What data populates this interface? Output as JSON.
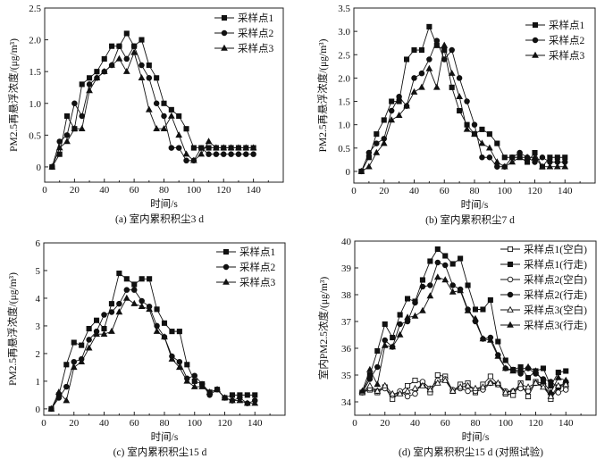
{
  "chart_data": [
    {
      "type": "line",
      "panel_id": "a",
      "caption": "(a)  室内累积积尘3 d",
      "xlabel": "时间/s",
      "ylabel": "PM2.5再悬浮浓度/(μg/m³)",
      "xlim": [
        0,
        160
      ],
      "ylim": [
        -0.24,
        2.5
      ],
      "xticks": [
        0,
        20,
        40,
        60,
        80,
        100,
        120,
        140
      ],
      "yticks": [
        0,
        0.5,
        1.0,
        1.5,
        2.0,
        2.5
      ],
      "ytick_labels": [
        "0",
        "0.5",
        "1.0",
        "1.5",
        "2.0",
        "2.5"
      ],
      "legend_position": "top-right",
      "x": [
        5,
        10,
        15,
        20,
        25,
        30,
        35,
        40,
        45,
        50,
        55,
        60,
        65,
        70,
        75,
        80,
        85,
        90,
        95,
        100,
        105,
        110,
        115,
        120,
        125,
        130,
        135,
        140
      ],
      "series": [
        {
          "name": "采样点1",
          "marker": "square",
          "filled": true,
          "values": [
            0,
            0.2,
            0.8,
            0.6,
            1.3,
            1.4,
            1.5,
            1.7,
            1.9,
            1.9,
            2.1,
            1.9,
            2.0,
            1.6,
            1.4,
            1.0,
            0.9,
            0.8,
            0.6,
            0.3,
            0.3,
            0.3,
            0.3,
            0.3,
            0.3,
            0.3,
            0.3,
            0.3
          ]
        },
        {
          "name": "采样点2",
          "marker": "circle",
          "filled": true,
          "values": [
            0,
            0.4,
            0.5,
            1.0,
            0.8,
            1.3,
            1.4,
            1.5,
            1.6,
            1.9,
            1.7,
            1.9,
            1.6,
            1.4,
            1.0,
            0.8,
            0.3,
            0.3,
            0.1,
            0.1,
            0.3,
            0.2,
            0.2,
            0.2,
            0.2,
            0.2,
            0.2,
            0.2
          ]
        },
        {
          "name": "采样点3",
          "marker": "triangle",
          "filled": true,
          "values": [
            0,
            0.3,
            0.4,
            0.6,
            0.6,
            1.2,
            1.4,
            1.5,
            1.6,
            1.7,
            1.5,
            1.8,
            1.4,
            0.9,
            0.6,
            0.6,
            0.8,
            0.5,
            0.2,
            0.1,
            0.2,
            0.4,
            0.3,
            0.3,
            0.3,
            0.3,
            0.3,
            0.3
          ]
        }
      ]
    },
    {
      "type": "line",
      "panel_id": "b",
      "caption": "(b)  室内累积积尘7 d",
      "xlabel": "时间/s",
      "ylabel": "PM2.5再悬浮浓度/(μg/m³)",
      "xlim": [
        0,
        160
      ],
      "ylim": [
        -0.25,
        3.5
      ],
      "xticks": [
        0,
        20,
        40,
        60,
        80,
        100,
        120,
        140
      ],
      "yticks": [
        0,
        0.5,
        1.0,
        1.5,
        2.0,
        2.5,
        3.0,
        3.5
      ],
      "ytick_labels": [
        "0",
        "0.5",
        "1.0",
        "1.5",
        "2.0",
        "2.5",
        "3.0",
        "3.5"
      ],
      "legend_position": "top-right",
      "x": [
        5,
        10,
        15,
        20,
        25,
        30,
        35,
        40,
        45,
        50,
        55,
        60,
        65,
        70,
        75,
        80,
        85,
        90,
        95,
        100,
        105,
        110,
        115,
        120,
        125,
        130,
        135,
        140
      ],
      "series": [
        {
          "name": "采样点1",
          "marker": "square",
          "filled": true,
          "values": [
            0,
            0.3,
            0.8,
            1.1,
            1.5,
            1.5,
            2.4,
            2.6,
            2.6,
            3.1,
            2.7,
            2.6,
            1.8,
            1.3,
            1.0,
            0.8,
            0.9,
            0.8,
            0.6,
            0.3,
            0.3,
            0.3,
            0.2,
            0.4,
            0.1,
            0.3,
            0.3,
            0.3
          ]
        },
        {
          "name": "采样点2",
          "marker": "circle",
          "filled": true,
          "values": [
            0,
            0.4,
            0.6,
            0.7,
            1.3,
            1.6,
            1.4,
            2.0,
            2.1,
            2.4,
            2.8,
            2.4,
            2.6,
            2.0,
            1.5,
            1.0,
            0.3,
            0.3,
            0.1,
            0.1,
            0.3,
            0.4,
            0.3,
            0.2,
            0.3,
            0.2,
            0.2,
            0.2
          ]
        },
        {
          "name": "采样点3",
          "marker": "triangle",
          "filled": true,
          "values": [
            0,
            0.1,
            0.4,
            0.6,
            1.1,
            1.2,
            1.4,
            1.7,
            1.8,
            2.2,
            1.8,
            2.7,
            2.1,
            1.6,
            0.9,
            0.8,
            0.6,
            0.5,
            0.2,
            0.1,
            0.2,
            0.3,
            0.3,
            0.3,
            0.1,
            0.1,
            0.1,
            0.1
          ]
        }
      ]
    },
    {
      "type": "line",
      "panel_id": "c",
      "caption": "(c)  室内累积积尘15 d",
      "xlabel": "时间/s",
      "ylabel": "PM2.5再悬浮浓度/(μg/m³)",
      "xlim": [
        0,
        160
      ],
      "ylim": [
        -0.23,
        6
      ],
      "xticks": [
        0,
        20,
        40,
        60,
        80,
        100,
        120,
        140
      ],
      "yticks": [
        0,
        1,
        2,
        3,
        4,
        5,
        6
      ],
      "ytick_labels": [
        "0",
        "1",
        "2",
        "3",
        "4",
        "5",
        "6"
      ],
      "legend_position": "top-right",
      "x": [
        5,
        10,
        15,
        20,
        25,
        30,
        35,
        40,
        45,
        50,
        55,
        60,
        65,
        70,
        75,
        80,
        85,
        90,
        95,
        100,
        105,
        110,
        115,
        120,
        125,
        130,
        135,
        140
      ],
      "series": [
        {
          "name": "采样点1",
          "marker": "square",
          "filled": true,
          "values": [
            0,
            0.5,
            1.6,
            2.4,
            2.3,
            2.9,
            3.2,
            2.9,
            3.8,
            4.9,
            4.7,
            4.5,
            4.7,
            4.7,
            3.6,
            3.1,
            2.8,
            2.8,
            1.6,
            1.0,
            0.9,
            0.6,
            0.7,
            0.4,
            0.5,
            0.5,
            0.5,
            0.5
          ]
        },
        {
          "name": "采样点2",
          "marker": "circle",
          "filled": true,
          "values": [
            0,
            0.4,
            0.8,
            1.7,
            1.8,
            2.5,
            2.8,
            3.4,
            3.5,
            3.8,
            4.3,
            4.3,
            3.9,
            3.7,
            3.0,
            2.6,
            1.9,
            1.7,
            1.1,
            1.2,
            0.9,
            0.5,
            0.7,
            0.4,
            0.3,
            0.4,
            0.2,
            0.3
          ]
        },
        {
          "name": "采样点3",
          "marker": "triangle",
          "filled": true,
          "values": [
            0,
            0.6,
            0.3,
            1.5,
            1.7,
            2.2,
            2.7,
            2.7,
            2.8,
            3.5,
            4.0,
            3.8,
            3.7,
            3.6,
            2.8,
            2.6,
            1.8,
            1.5,
            1.0,
            0.8,
            0.8,
            0.6,
            0.7,
            0.4,
            0.3,
            0.3,
            0.2,
            0.2
          ]
        }
      ]
    },
    {
      "type": "line",
      "panel_id": "d",
      "caption": "(d)  室内累积积尘15 d (对照试验)",
      "xlabel": "时间/s",
      "ylabel": "室内PM2.5浓度/(μg/m³)",
      "xlim": [
        0,
        160
      ],
      "ylim": [
        33.5,
        40
      ],
      "xticks": [
        0,
        20,
        40,
        60,
        80,
        100,
        120,
        140
      ],
      "yticks": [
        34,
        35,
        36,
        37,
        38,
        39,
        40
      ],
      "ytick_labels": [
        "34",
        "35",
        "36",
        "37",
        "38",
        "39",
        "40"
      ],
      "legend_position": "top-right",
      "x": [
        5,
        10,
        15,
        20,
        25,
        30,
        35,
        40,
        45,
        50,
        55,
        60,
        65,
        70,
        75,
        80,
        85,
        90,
        95,
        100,
        105,
        110,
        115,
        120,
        125,
        130,
        135,
        140
      ],
      "series": [
        {
          "name": "采样点1(空白)",
          "marker": "square",
          "filled": false,
          "values": [
            34.35,
            34.45,
            34.35,
            34.55,
            34.1,
            34.35,
            34.6,
            34.8,
            34.7,
            34.35,
            35.0,
            34.95,
            34.4,
            34.65,
            34.7,
            34.35,
            34.65,
            34.95,
            34.65,
            34.3,
            34.25,
            34.7,
            34.2,
            34.75,
            34.7,
            34.1,
            34.55,
            34.6
          ]
        },
        {
          "name": "采样点1(行走)",
          "marker": "square",
          "filled": true,
          "values": [
            34.35,
            35.0,
            35.9,
            36.9,
            36.4,
            37.25,
            37.85,
            37.75,
            38.55,
            39.25,
            39.7,
            39.45,
            39.15,
            39.35,
            38.35,
            37.45,
            37.45,
            37.8,
            36.25,
            35.55,
            35.2,
            35.3,
            34.9,
            35.15,
            35.25,
            34.6,
            35.1,
            35.15
          ]
        },
        {
          "name": "采样点2(空白)",
          "marker": "circle",
          "filled": false,
          "values": [
            34.35,
            34.5,
            34.4,
            34.5,
            34.25,
            34.4,
            34.2,
            34.3,
            34.75,
            34.5,
            34.8,
            34.85,
            34.45,
            34.5,
            34.4,
            34.4,
            34.45,
            34.7,
            34.65,
            34.4,
            34.4,
            34.5,
            34.4,
            34.7,
            34.6,
            34.3,
            34.35,
            34.45
          ]
        },
        {
          "name": "采样点2(行走)",
          "marker": "circle",
          "filled": true,
          "values": [
            34.35,
            34.85,
            35.3,
            36.3,
            36.05,
            36.9,
            37.0,
            37.7,
            38.3,
            38.35,
            39.2,
            39.1,
            38.35,
            38.2,
            37.45,
            37.0,
            36.35,
            36.4,
            35.75,
            35.25,
            35.2,
            35.05,
            35.25,
            35.05,
            34.85,
            34.75,
            34.55,
            34.75
          ]
        },
        {
          "name": "采样点3(空白)",
          "marker": "triangle",
          "filled": false,
          "values": [
            34.35,
            34.6,
            34.4,
            34.6,
            34.3,
            34.3,
            34.4,
            34.5,
            34.6,
            34.45,
            34.7,
            34.8,
            34.4,
            34.55,
            34.6,
            34.5,
            34.55,
            34.7,
            34.7,
            34.35,
            34.4,
            34.65,
            34.55,
            34.7,
            34.55,
            34.2,
            34.6,
            34.65
          ]
        },
        {
          "name": "采样点3(行走)",
          "marker": "triangle",
          "filled": true,
          "values": [
            34.4,
            35.2,
            34.65,
            36.1,
            36.05,
            36.5,
            37.15,
            37.2,
            37.4,
            37.95,
            38.65,
            38.55,
            38.1,
            38.15,
            37.4,
            37.1,
            36.35,
            36.3,
            35.7,
            35.25,
            35.15,
            35.2,
            35.3,
            35.15,
            34.75,
            34.35,
            34.9,
            34.8
          ]
        }
      ]
    }
  ]
}
